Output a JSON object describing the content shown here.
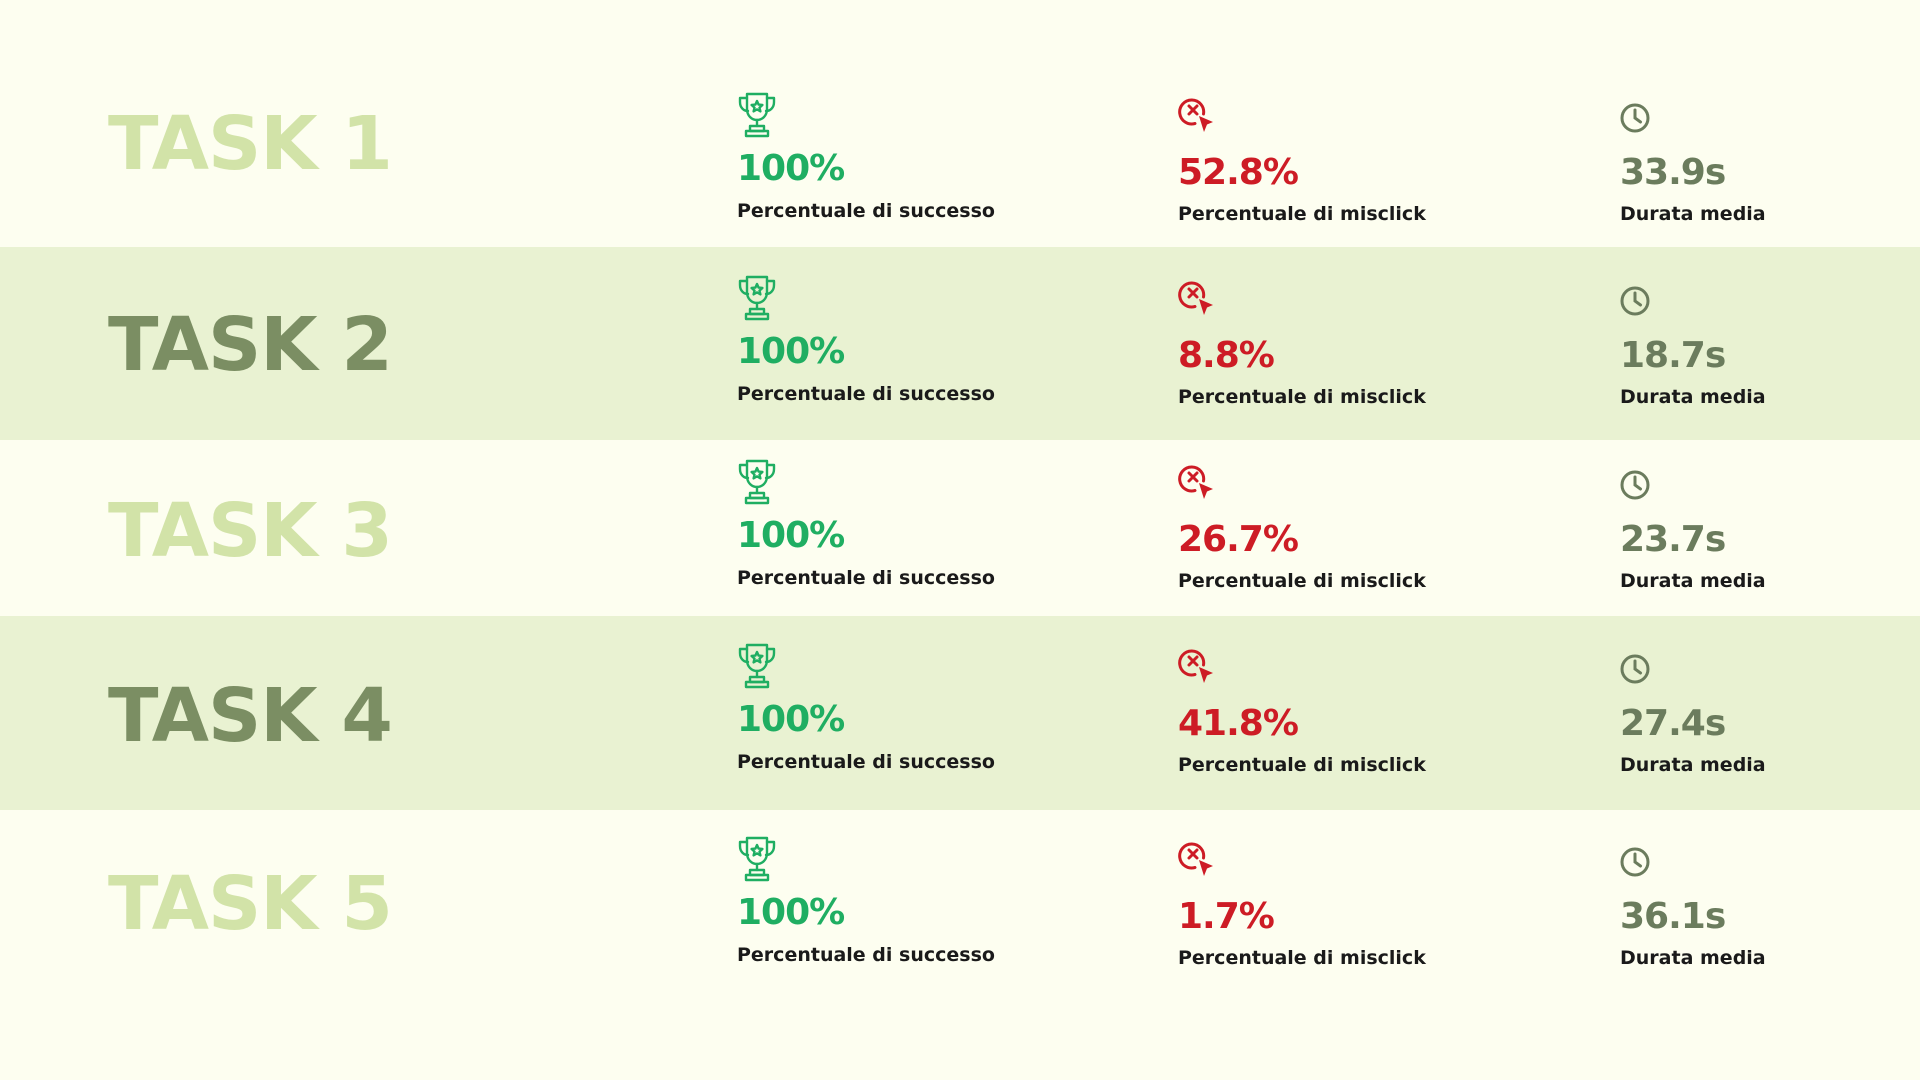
{
  "colors": {
    "background": "#fdfef0",
    "row_shade": "#e9f2d2",
    "task_light": "#d2e3a8",
    "task_dark": "#7b8e63",
    "success": "#1fae62",
    "misclick": "#cd1c25",
    "duration": "#6b7c5d",
    "label": "#1a1a1a"
  },
  "icons": {
    "success": "trophy-icon",
    "misclick": "misclick-cursor-icon",
    "duration": "clock-icon"
  },
  "tasks": [
    {
      "title": "TASK 1",
      "success_value": "100%",
      "success_label": "Percentuale di successo",
      "misclick_value": "52.8%",
      "misclick_label": "Percentuale di misclick",
      "duration_value": "33.9s",
      "duration_label": "Durata media"
    },
    {
      "title": "TASK 2",
      "success_value": "100%",
      "success_label": "Percentuale di successo",
      "misclick_value": "8.8%",
      "misclick_label": "Percentuale di misclick",
      "duration_value": "18.7s",
      "duration_label": "Durata media"
    },
    {
      "title": "TASK 3",
      "success_value": "100%",
      "success_label": "Percentuale di successo",
      "misclick_value": "26.7%",
      "misclick_label": "Percentuale di misclick",
      "duration_value": "23.7s",
      "duration_label": "Durata media"
    },
    {
      "title": "TASK 4",
      "success_value": "100%",
      "success_label": "Percentuale di successo",
      "misclick_value": "41.8%",
      "misclick_label": "Percentuale di misclick",
      "duration_value": "27.4s",
      "duration_label": "Durata media"
    },
    {
      "title": "TASK 5",
      "success_value": "100%",
      "success_label": "Percentuale di successo",
      "misclick_value": "1.7%",
      "misclick_label": "Percentuale di misclick",
      "duration_value": "36.1s",
      "duration_label": "Durata media"
    }
  ]
}
